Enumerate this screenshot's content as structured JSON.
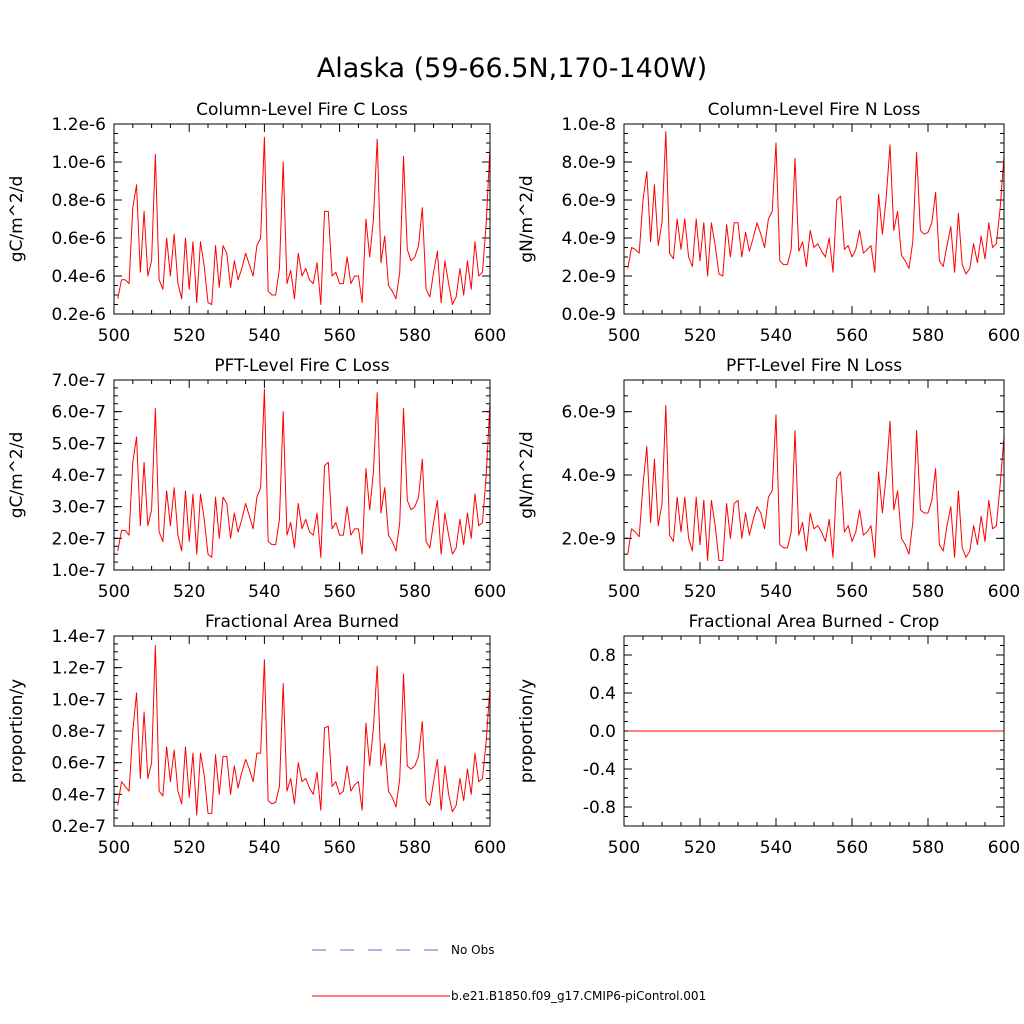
{
  "title": "Alaska (59-66.5N,170-140W)",
  "colors": {
    "model": "#ff0000",
    "obs": "#6b6bd6",
    "axis": "#000000"
  },
  "legend": {
    "obs_label": "No Obs",
    "model_label": "b.e21.B1850.f09_g17.CMIP6-piControl.001"
  },
  "chart_data": [
    {
      "type": "line",
      "title": "Column-Level Fire C Loss",
      "ylabel": "gC/m^2/d",
      "xlim": [
        500,
        600
      ],
      "ylim": [
        2e-07,
        1.2e-06
      ],
      "xticks": [
        500,
        520,
        540,
        560,
        580,
        600
      ],
      "xtick_labels": [
        "500",
        "520",
        "540",
        "560",
        "580",
        "600"
      ],
      "yticks": [
        2e-07,
        4e-07,
        6e-07,
        8e-07,
        1e-06,
        1.2e-06
      ],
      "ytick_labels": [
        "0.2e-6",
        "0.4e-6",
        "0.6e-6",
        "0.8e-6",
        "1.0e-6",
        "1.2e-6"
      ],
      "x_start": 501,
      "series": [
        {
          "name": "b.e21.B1850.f09_g17.CMIP6-piControl.001",
          "values": [
            2.8e-07,
            3.8e-07,
            3.8e-07,
            3.6e-07,
            7.6e-07,
            8.8e-07,
            4.2e-07,
            7.4e-07,
            4e-07,
            4.8e-07,
            1.04e-06,
            3.8e-07,
            3.3e-07,
            6e-07,
            4e-07,
            6.2e-07,
            3.6e-07,
            2.8e-07,
            6e-07,
            3.3e-07,
            5.8e-07,
            2.6e-07,
            5.8e-07,
            4.5e-07,
            2.6e-07,
            2.5e-07,
            5.6e-07,
            3.4e-07,
            5.6e-07,
            5.2e-07,
            3.4e-07,
            4.8e-07,
            3.8e-07,
            4.4e-07,
            5.2e-07,
            4.6e-07,
            4e-07,
            5.6e-07,
            6e-07,
            1.13e-06,
            3.2e-07,
            3e-07,
            3e-07,
            4.4e-07,
            1e-06,
            3.6e-07,
            4.3e-07,
            2.8e-07,
            5.2e-07,
            4e-07,
            4.4e-07,
            3.8e-07,
            3.6e-07,
            4.7e-07,
            2.5e-07,
            7.4e-07,
            7.4e-07,
            4e-07,
            4.2e-07,
            3.6e-07,
            3.6e-07,
            5e-07,
            3.6e-07,
            4e-07,
            4e-07,
            2.6e-07,
            7e-07,
            5e-07,
            7e-07,
            1.12e-06,
            4.7e-07,
            6.1e-07,
            3.5e-07,
            3.2e-07,
            2.8e-07,
            4.2e-07,
            1.03e-06,
            5.4e-07,
            4.8e-07,
            5e-07,
            5.6e-07,
            7.6e-07,
            3.3e-07,
            2.9e-07,
            4.2e-07,
            5.3e-07,
            2.6e-07,
            4.8e-07,
            3.6e-07,
            2.5e-07,
            2.9e-07,
            4.4e-07,
            3e-07,
            4.8e-07,
            3.3e-07,
            5.8e-07,
            4e-07,
            4.2e-07,
            6.8e-07,
            1.08e-06
          ]
        },
        {
          "name": "No Obs",
          "values": []
        }
      ]
    },
    {
      "type": "line",
      "title": "Column-Level Fire N Loss",
      "ylabel": "gN/m^2/d",
      "xlim": [
        500,
        600
      ],
      "ylim": [
        0.0,
        1e-08
      ],
      "xticks": [
        500,
        520,
        540,
        560,
        580,
        600
      ],
      "xtick_labels": [
        "500",
        "520",
        "540",
        "560",
        "580",
        "600"
      ],
      "yticks": [
        0.0,
        2e-09,
        4e-09,
        6e-09,
        8e-09,
        1e-08
      ],
      "ytick_labels": [
        "0.0e-9",
        "2.0e-9",
        "4.0e-9",
        "6.0e-9",
        "8.0e-9",
        "1.0e-8"
      ],
      "x_start": 501,
      "series": [
        {
          "name": "b.e21.B1850.f09_g17.CMIP6-piControl.001",
          "values": [
            2.4e-09,
            3.5e-09,
            3.4e-09,
            3.2e-09,
            6e-09,
            7.5e-09,
            3.8e-09,
            6.8e-09,
            3.6e-09,
            4.8e-09,
            9.6e-09,
            3.2e-09,
            2.9e-09,
            5e-09,
            3.4e-09,
            5e-09,
            3e-09,
            2.5e-09,
            5e-09,
            2.8e-09,
            4.8e-09,
            2e-09,
            4.8e-09,
            3.6e-09,
            2.1e-09,
            2e-09,
            4.7e-09,
            3e-09,
            4.8e-09,
            4.8e-09,
            3e-09,
            4.3e-09,
            3.3e-09,
            4e-09,
            4.8e-09,
            4.2e-09,
            3.5e-09,
            5e-09,
            5.4e-09,
            9e-09,
            2.8e-09,
            2.6e-09,
            2.6e-09,
            3.4e-09,
            8.2e-09,
            3.3e-09,
            3.8e-09,
            2.5e-09,
            4.4e-09,
            3.5e-09,
            3.7e-09,
            3.3e-09,
            3e-09,
            4e-09,
            2.2e-09,
            6e-09,
            6.2e-09,
            3.4e-09,
            3.6e-09,
            3e-09,
            3.4e-09,
            4.4e-09,
            3.2e-09,
            3.4e-09,
            3.6e-09,
            2.2e-09,
            6.3e-09,
            4.2e-09,
            6.1e-09,
            8.9e-09,
            4.4e-09,
            5.4e-09,
            3.1e-09,
            2.8e-09,
            2.4e-09,
            3.8e-09,
            8.5e-09,
            4.4e-09,
            4.2e-09,
            4.3e-09,
            4.8e-09,
            6.4e-09,
            2.8e-09,
            2.5e-09,
            3.6e-09,
            4.6e-09,
            2.2e-09,
            5.3e-09,
            2.6e-09,
            2.1e-09,
            2.4e-09,
            3.7e-09,
            2.7e-09,
            4.1e-09,
            2.9e-09,
            4.8e-09,
            3.5e-09,
            3.7e-09,
            5.6e-09,
            8.3e-09
          ]
        },
        {
          "name": "No Obs",
          "values": []
        }
      ]
    },
    {
      "type": "line",
      "title": "PFT-Level Fire C Loss",
      "ylabel": "gC/m^2/d",
      "xlim": [
        500,
        600
      ],
      "ylim": [
        1e-07,
        7e-07
      ],
      "xticks": [
        500,
        520,
        540,
        560,
        580,
        600
      ],
      "xtick_labels": [
        "500",
        "520",
        "540",
        "560",
        "580",
        "600"
      ],
      "yticks": [
        1e-07,
        2e-07,
        3e-07,
        4e-07,
        5e-07,
        6e-07,
        7e-07
      ],
      "ytick_labels": [
        "1.0e-7",
        "2.0e-7",
        "3.0e-7",
        "4.0e-7",
        "5.0e-7",
        "6.0e-7",
        "7.0e-7"
      ],
      "x_start": 501,
      "series": [
        {
          "name": "b.e21.B1850.f09_g17.CMIP6-piControl.001",
          "values": [
            1.6e-07,
            2.25e-07,
            2.25e-07,
            2.1e-07,
            4.4e-07,
            5.2e-07,
            2.4e-07,
            4.4e-07,
            2.4e-07,
            2.9e-07,
            6.1e-07,
            2.2e-07,
            1.9e-07,
            3.5e-07,
            2.4e-07,
            3.6e-07,
            2.1e-07,
            1.6e-07,
            3.5e-07,
            1.9e-07,
            3.4e-07,
            1.5e-07,
            3.4e-07,
            2.6e-07,
            1.5e-07,
            1.4e-07,
            3.3e-07,
            2e-07,
            3.3e-07,
            3.1e-07,
            2e-07,
            2.8e-07,
            2.2e-07,
            2.6e-07,
            3.1e-07,
            2.7e-07,
            2.3e-07,
            3.3e-07,
            3.6e-07,
            6.7e-07,
            1.9e-07,
            1.8e-07,
            1.8e-07,
            2.6e-07,
            6e-07,
            2.1e-07,
            2.5e-07,
            1.7e-07,
            3.1e-07,
            2.3e-07,
            2.6e-07,
            2.2e-07,
            2.1e-07,
            2.8e-07,
            1.4e-07,
            4.3e-07,
            4.4e-07,
            2.3e-07,
            2.5e-07,
            2.1e-07,
            2.1e-07,
            3e-07,
            2.1e-07,
            2.3e-07,
            2.3e-07,
            1.5e-07,
            4.2e-07,
            2.9e-07,
            4.1e-07,
            6.6e-07,
            2.8e-07,
            3.6e-07,
            2.1e-07,
            1.9e-07,
            1.6e-07,
            2.5e-07,
            6.1e-07,
            3.2e-07,
            2.9e-07,
            3e-07,
            3.3e-07,
            4.5e-07,
            1.9e-07,
            1.7e-07,
            2.5e-07,
            3.2e-07,
            1.5e-07,
            2.8e-07,
            2.1e-07,
            1.5e-07,
            1.7e-07,
            2.6e-07,
            1.8e-07,
            2.8e-07,
            2e-07,
            3.4e-07,
            2.4e-07,
            2.5e-07,
            4e-07,
            6.3e-07
          ]
        },
        {
          "name": "No Obs",
          "values": []
        }
      ]
    },
    {
      "type": "line",
      "title": "PFT-Level Fire N Loss",
      "ylabel": "gN/m^2/d",
      "xlim": [
        500,
        600
      ],
      "ylim": [
        1e-09,
        7e-09
      ],
      "xticks": [
        500,
        520,
        540,
        560,
        580,
        600
      ],
      "xtick_labels": [
        "500",
        "520",
        "540",
        "560",
        "580",
        "600"
      ],
      "yticks": [
        2e-09,
        4e-09,
        6e-09
      ],
      "ytick_labels": [
        "2.0e-9",
        "4.0e-9",
        "6.0e-9"
      ],
      "x_start": 501,
      "series": [
        {
          "name": "b.e21.B1850.f09_g17.CMIP6-piControl.001",
          "values": [
            1.5e-09,
            2.3e-09,
            2.2e-09,
            2.05e-09,
            3.7e-09,
            4.9e-09,
            2.5e-09,
            4.5e-09,
            2.4e-09,
            3.1e-09,
            6.2e-09,
            2.1e-09,
            1.9e-09,
            3.3e-09,
            2.2e-09,
            3.3e-09,
            2e-09,
            1.6e-09,
            3.3e-09,
            1.8e-09,
            3.2e-09,
            1.3e-09,
            3.2e-09,
            2.4e-09,
            1.3e-09,
            1.3e-09,
            3.1e-09,
            2e-09,
            3.1e-09,
            3.2e-09,
            2e-09,
            2.8e-09,
            2.1e-09,
            2.6e-09,
            3e-09,
            2.8e-09,
            2.3e-09,
            3.3e-09,
            3.5e-09,
            5.9e-09,
            1.8e-09,
            1.7e-09,
            1.7e-09,
            2.2e-09,
            5.4e-09,
            2.1e-09,
            2.5e-09,
            1.6e-09,
            2.8e-09,
            2.3e-09,
            2.4e-09,
            2.2e-09,
            1.9e-09,
            2.6e-09,
            1.4e-09,
            3.9e-09,
            4.1e-09,
            2.2e-09,
            2.4e-09,
            1.9e-09,
            2.2e-09,
            2.9e-09,
            2.1e-09,
            2.2e-09,
            2.4e-09,
            1.4e-09,
            4.1e-09,
            2.8e-09,
            4e-09,
            5.7e-09,
            2.9e-09,
            3.5e-09,
            2e-09,
            1.8e-09,
            1.5e-09,
            2.5e-09,
            5.4e-09,
            2.9e-09,
            2.8e-09,
            2.8e-09,
            3.2e-09,
            4.2e-09,
            1.8e-09,
            1.6e-09,
            2.4e-09,
            3e-09,
            1.4e-09,
            3.5e-09,
            1.7e-09,
            1.4e-09,
            1.6e-09,
            2.4e-09,
            1.8e-09,
            2.7e-09,
            1.9e-09,
            3.2e-09,
            2.3e-09,
            2.4e-09,
            3.7e-09,
            5.2e-09
          ]
        },
        {
          "name": "No Obs",
          "values": []
        }
      ]
    },
    {
      "type": "line",
      "title": "Fractional Area Burned",
      "ylabel": "proportion/y",
      "xlim": [
        500,
        600
      ],
      "ylim": [
        2e-08,
        1.4e-07
      ],
      "xticks": [
        500,
        520,
        540,
        560,
        580,
        600
      ],
      "xtick_labels": [
        "500",
        "520",
        "540",
        "560",
        "580",
        "600"
      ],
      "yticks": [
        2e-08,
        4e-08,
        6e-08,
        8e-08,
        1e-07,
        1.2e-07,
        1.4e-07
      ],
      "ytick_labels": [
        "0.2e-7",
        "0.4e-7",
        "0.6e-7",
        "0.8e-7",
        "1.0e-7",
        "1.2e-7",
        "1.4e-7"
      ],
      "x_start": 501,
      "series": [
        {
          "name": "b.e21.B1850.f09_g17.CMIP6-piControl.001",
          "values": [
            3.3e-08,
            4.8e-08,
            4.5e-08,
            4.2e-08,
            8e-08,
            1.04e-07,
            5e-08,
            9.2e-08,
            5e-08,
            6e-08,
            1.34e-07,
            4.2e-08,
            3.9e-08,
            7e-08,
            4.8e-08,
            6.8e-08,
            4.2e-08,
            3.4e-08,
            7e-08,
            3.8e-08,
            6.6e-08,
            2.7e-08,
            6.6e-08,
            5.2e-08,
            2.8e-08,
            2.8e-08,
            6.5e-08,
            4e-08,
            6.4e-08,
            6.4e-08,
            4e-08,
            5.8e-08,
            4.4e-08,
            5.4e-08,
            6.2e-08,
            5.6e-08,
            4.8e-08,
            6.6e-08,
            6.6e-08,
            1.25e-07,
            3.6e-08,
            3.4e-08,
            3.5e-08,
            4.5e-08,
            1.1e-07,
            4.2e-08,
            5e-08,
            3.4e-08,
            6e-08,
            4.8e-08,
            5e-08,
            4.4e-08,
            4e-08,
            5.4e-08,
            3e-08,
            8.2e-08,
            8.3e-08,
            4.5e-08,
            4.8e-08,
            4e-08,
            4.2e-08,
            5.8e-08,
            4.2e-08,
            4.6e-08,
            4.8e-08,
            3e-08,
            8.5e-08,
            5.8e-08,
            8.2e-08,
            1.21e-07,
            5.8e-08,
            7.2e-08,
            4.2e-08,
            3.8e-08,
            3.2e-08,
            5e-08,
            1.16e-07,
            5.8e-08,
            5.6e-08,
            5.8e-08,
            6.4e-08,
            8.6e-08,
            3.6e-08,
            3.3e-08,
            4.8e-08,
            6.2e-08,
            3e-08,
            5.8e-08,
            4e-08,
            2.9e-08,
            3.3e-08,
            5e-08,
            3.6e-08,
            5.6e-08,
            4e-08,
            6.6e-08,
            4.8e-08,
            5e-08,
            7.4e-08,
            1.08e-07
          ]
        },
        {
          "name": "No Obs",
          "values": []
        }
      ]
    },
    {
      "type": "line",
      "title": "Fractional Area Burned - Crop",
      "ylabel": "proportion/y",
      "xlim": [
        500,
        600
      ],
      "ylim": [
        -1.0,
        1.0
      ],
      "xticks": [
        500,
        520,
        540,
        560,
        580,
        600
      ],
      "xtick_labels": [
        "500",
        "520",
        "540",
        "560",
        "580",
        "600"
      ],
      "yticks": [
        -0.8,
        -0.4,
        0.0,
        0.4,
        0.8
      ],
      "ytick_labels": [
        "-0.8",
        "-0.4",
        "0.0",
        "0.4",
        "0.8"
      ],
      "x_start": 501,
      "series": [
        {
          "name": "b.e21.B1850.f09_g17.CMIP6-piControl.001",
          "values": [
            0,
            0,
            0,
            0,
            0,
            0,
            0,
            0,
            0,
            0,
            0,
            0,
            0,
            0,
            0,
            0,
            0,
            0,
            0,
            0,
            0,
            0,
            0,
            0,
            0,
            0,
            0,
            0,
            0,
            0,
            0,
            0,
            0,
            0,
            0,
            0,
            0,
            0,
            0,
            0,
            0,
            0,
            0,
            0,
            0,
            0,
            0,
            0,
            0,
            0,
            0,
            0,
            0,
            0,
            0,
            0,
            0,
            0,
            0,
            0,
            0,
            0,
            0,
            0,
            0,
            0,
            0,
            0,
            0,
            0,
            0,
            0,
            0,
            0,
            0,
            0,
            0,
            0,
            0,
            0,
            0,
            0,
            0,
            0,
            0,
            0,
            0,
            0,
            0,
            0,
            0,
            0,
            0,
            0,
            0,
            0,
            0,
            0,
            0,
            0
          ]
        },
        {
          "name": "No Obs",
          "values": []
        }
      ]
    }
  ]
}
